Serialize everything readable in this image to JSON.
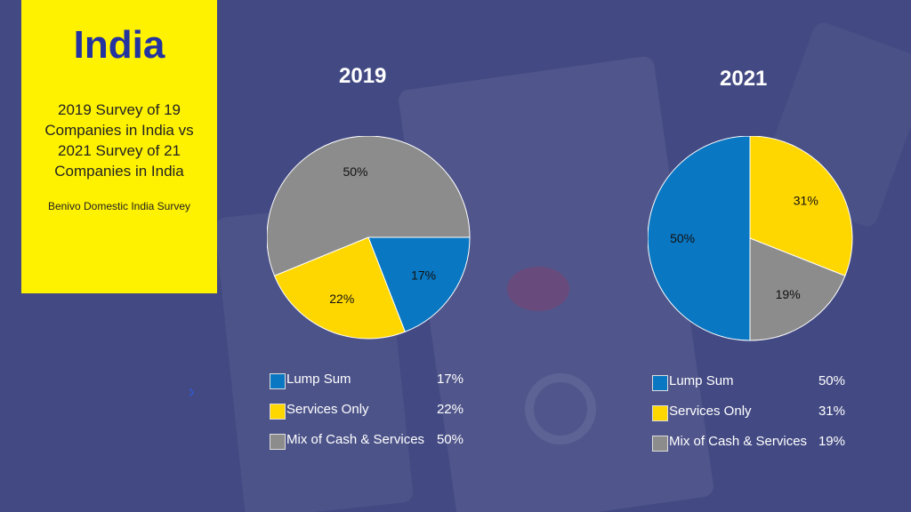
{
  "banner": {
    "title": "India",
    "subtitle_lines": [
      "2019 Survey of 19",
      "Companies in India vs",
      "2021 Survey of 21",
      "Companies in India"
    ],
    "source": "Benivo Domestic India Survey"
  },
  "colors": {
    "banner": "#fff200",
    "banner_title": "#2333a0",
    "background": "#434a83",
    "lump_sum": "#0a77c2",
    "services_only": "#ffd700",
    "mix": "#8c8c8c"
  },
  "chart_data": [
    {
      "type": "pie",
      "title": "2019",
      "series": [
        {
          "name": "Lump Sum",
          "value": 17,
          "label": "17%",
          "color": "#0a77c2"
        },
        {
          "name": "Services Only",
          "value": 22,
          "label": "22%",
          "color": "#ffd700"
        },
        {
          "name": "Mix of Cash & Services",
          "value": 50,
          "label": "50%",
          "color": "#8c8c8c"
        }
      ],
      "legend_placement": "bottom"
    },
    {
      "type": "pie",
      "title": "2021",
      "series": [
        {
          "name": "Lump Sum",
          "value": 50,
          "label": "50%",
          "color": "#0a77c2"
        },
        {
          "name": "Services Only",
          "value": 31,
          "label": "31%",
          "color": "#ffd700"
        },
        {
          "name": "Mix of Cash & Services",
          "value": 19,
          "label": "19%",
          "color": "#8c8c8c"
        }
      ],
      "legend_placement": "bottom"
    }
  ]
}
